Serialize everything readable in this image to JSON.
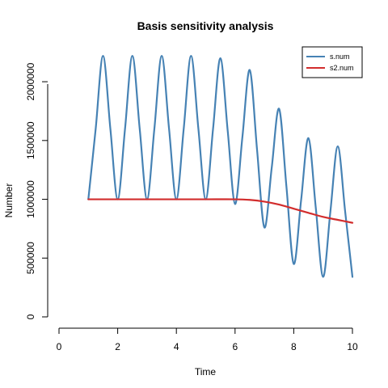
{
  "chart_data": {
    "type": "line",
    "title": "Basis sensitivity analysis",
    "xlabel": "Time",
    "ylabel": "Number",
    "xlim": [
      0,
      10
    ],
    "ylim": [
      0,
      2200000
    ],
    "x_ticks": [
      0,
      2,
      4,
      6,
      8,
      10
    ],
    "y_ticks": [
      0,
      500000,
      1000000,
      1500000,
      2000000
    ],
    "x_tick_labels": [
      "0",
      "2",
      "4",
      "6",
      "8",
      "10"
    ],
    "y_tick_labels": [
      "0",
      "500000",
      "1000000",
      "1500000",
      "2000000"
    ],
    "grid": false,
    "legend": {
      "position": "top-right",
      "entries": [
        "s.num",
        "s2.num"
      ]
    },
    "series": [
      {
        "name": "s.num",
        "color": "#4682b4",
        "x": [
          1.0,
          1.25,
          1.5,
          1.75,
          2.0,
          2.25,
          2.5,
          2.75,
          3.0,
          3.25,
          3.5,
          3.75,
          4.0,
          4.25,
          4.5,
          4.75,
          5.0,
          5.25,
          5.5,
          5.75,
          6.0,
          6.25,
          6.5,
          6.75,
          7.0,
          7.25,
          7.5,
          7.75,
          8.0,
          8.25,
          8.5,
          8.75,
          9.0,
          9.25,
          9.5,
          9.75,
          10.0
        ],
        "y": [
          1000000,
          1600000,
          2220000,
          1600000,
          1000000,
          1600000,
          2220000,
          1600000,
          1000000,
          1600000,
          2220000,
          1600000,
          1000000,
          1600000,
          2220000,
          1600000,
          1000000,
          1600000,
          2200000,
          1580000,
          960000,
          1530000,
          2100000,
          1420000,
          760000,
          1270000,
          1770000,
          1110000,
          450000,
          990000,
          1520000,
          930000,
          340000,
          900000,
          1450000,
          900000,
          340000
        ]
      },
      {
        "name": "s2.num",
        "color": "#d22d2d",
        "x": [
          1.0,
          2.0,
          3.0,
          4.0,
          5.0,
          6.0,
          6.5,
          7.0,
          7.5,
          8.0,
          8.5,
          9.0,
          9.5,
          10.0
        ],
        "y": [
          1000000,
          1000000,
          1000000,
          1000000,
          1000000,
          1000000,
          995000,
          980000,
          955000,
          920000,
          885000,
          850000,
          825000,
          800000
        ]
      }
    ]
  }
}
